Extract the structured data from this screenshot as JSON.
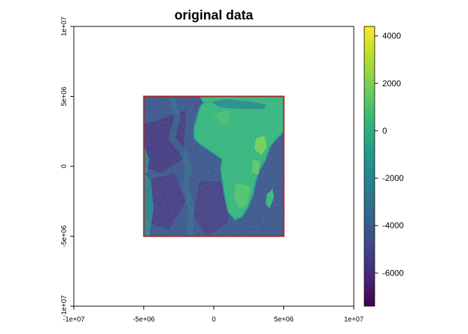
{
  "chart_data": {
    "type": "heatmap",
    "title": "original data",
    "xlabel": "",
    "ylabel": "",
    "xlim": [
      -10000000,
      10000000
    ],
    "ylim": [
      -10000000,
      10000000
    ],
    "x_ticks": [
      {
        "value": -10000000,
        "label": "-1e+07"
      },
      {
        "value": -5000000,
        "label": "-5e+06"
      },
      {
        "value": 0,
        "label": "0"
      },
      {
        "value": 5000000,
        "label": "5e+06"
      },
      {
        "value": 10000000,
        "label": "1e+07"
      }
    ],
    "y_ticks": [
      {
        "value": -10000000,
        "label": "-1e+07"
      },
      {
        "value": -5000000,
        "label": "-5e+06"
      },
      {
        "value": 0,
        "label": "0"
      },
      {
        "value": 5000000,
        "label": "5e+06"
      },
      {
        "value": 10000000,
        "label": "1e+07"
      }
    ],
    "raster_extent": {
      "xmin": -5000000,
      "xmax": 5000000,
      "ymin": -5000000,
      "ymax": 5000000
    },
    "raster_border_color": "#a52a2a",
    "colorscale": {
      "name": "viridis",
      "min": -7400,
      "max": 4400,
      "stops": [
        "#440154",
        "#482878",
        "#3e4a89",
        "#31688e",
        "#26828e",
        "#1f9e89",
        "#35b779",
        "#6ece58",
        "#b5de2b",
        "#fde725"
      ],
      "ticks": [
        {
          "value": 4000,
          "label": "4000"
        },
        {
          "value": 2000,
          "label": "2000"
        },
        {
          "value": 0,
          "label": "0"
        },
        {
          "value": -2000,
          "label": "-2000"
        },
        {
          "value": -4000,
          "label": "-4000"
        },
        {
          "value": -6000,
          "label": "-6000"
        }
      ]
    },
    "grid": false,
    "legend": "right"
  }
}
